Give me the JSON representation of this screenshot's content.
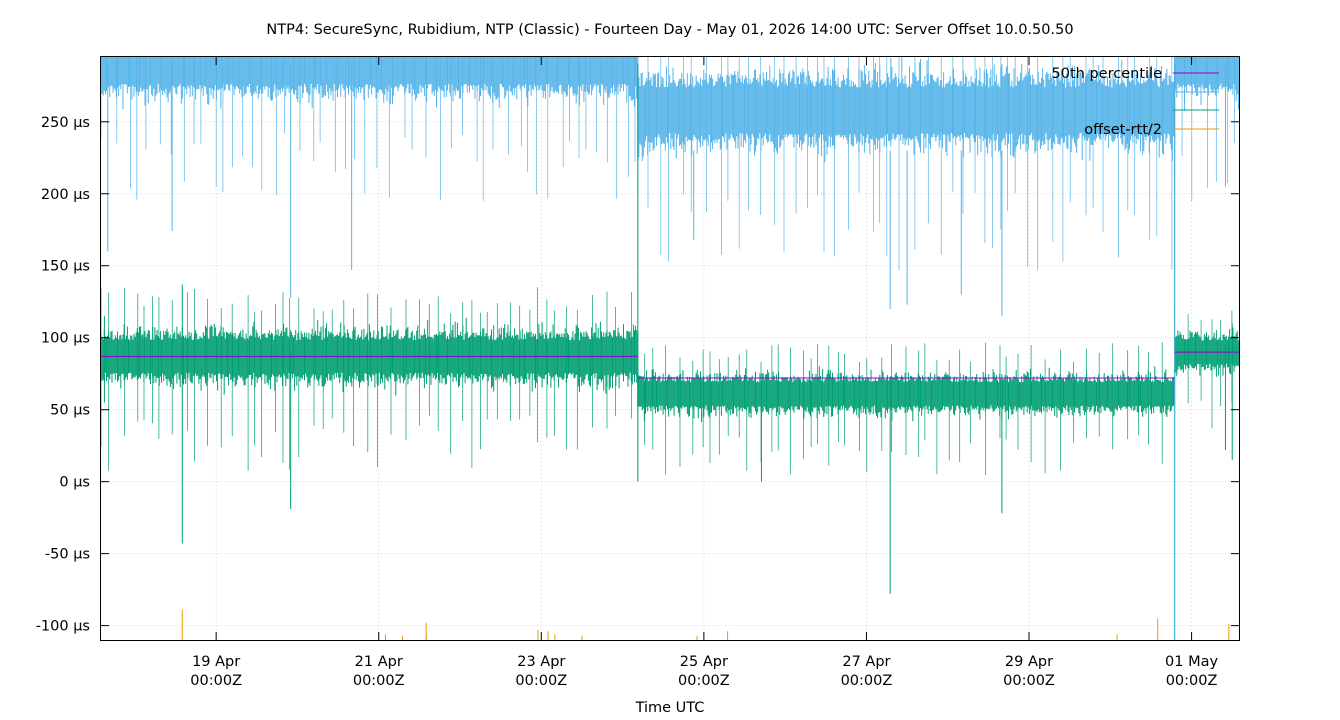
{
  "chart_data": {
    "type": "line",
    "title": "NTP4: SecureSync, Rubidium, NTP (Classic) - Fourteen Day - May 01, 2026 14:00 UTC: Server Offset 10.0.50.50",
    "xlabel": "Time UTC",
    "ylabel": "",
    "ylim": [
      -110,
      295
    ],
    "y_ticks": [
      {
        "value": 250,
        "label": "250 µs"
      },
      {
        "value": 200,
        "label": "200 µs"
      },
      {
        "value": 150,
        "label": "150 µs"
      },
      {
        "value": 100,
        "label": "100 µs"
      },
      {
        "value": 50,
        "label": "50 µs"
      },
      {
        "value": 0,
        "label": "0 µs"
      },
      {
        "value": -50,
        "label": "-50 µs"
      },
      {
        "value": -100,
        "label": "-100 µs"
      }
    ],
    "xlim": [
      "2026-04-17T14:00Z",
      "2026-05-01T14:00Z"
    ],
    "x_ticks": [
      {
        "value": "2026-04-19T00:00Z",
        "line1": "19 Apr",
        "line2": "00:00Z"
      },
      {
        "value": "2026-04-21T00:00Z",
        "line1": "21 Apr",
        "line2": "00:00Z"
      },
      {
        "value": "2026-04-23T00:00Z",
        "line1": "23 Apr",
        "line2": "00:00Z"
      },
      {
        "value": "2026-04-25T00:00Z",
        "line1": "25 Apr",
        "line2": "00:00Z"
      },
      {
        "value": "2026-04-27T00:00Z",
        "line1": "27 Apr",
        "line2": "00:00Z"
      },
      {
        "value": "2026-04-29T00:00Z",
        "line1": "29 Apr",
        "line2": "00:00Z"
      },
      {
        "value": "2026-05-01T00:00Z",
        "line1": "01 May",
        "line2": "00:00Z"
      }
    ],
    "grid": true,
    "legend_position": "top-right",
    "series": [
      {
        "name": "50th percentile",
        "color": "#9400d3",
        "segments": [
          {
            "start": "2026-04-17T14:00Z",
            "end": "2026-04-24T04:30Z",
            "value": 87
          },
          {
            "start": "2026-04-24T04:30Z",
            "end": "2026-04-30T19:00Z",
            "value": 72
          },
          {
            "start": "2026-04-30T19:00Z",
            "end": "2026-05-01T14:00Z",
            "value": 90
          }
        ]
      },
      {
        "name": "",
        "color": "#56b4e9",
        "segments": [
          {
            "start": "2026-04-17T14:00Z",
            "end": "2026-04-24T04:30Z",
            "center": 290,
            "spread": 30
          },
          {
            "start": "2026-04-24T04:30Z",
            "end": "2026-04-30T19:00Z",
            "center": 258,
            "spread": 35
          },
          {
            "start": "2026-04-30T19:00Z",
            "end": "2026-05-01T14:00Z",
            "center": 290,
            "spread": 30
          }
        ]
      },
      {
        "name": "",
        "color": "#009e73",
        "segments": [
          {
            "start": "2026-04-17T14:00Z",
            "end": "2026-04-24T04:30Z",
            "center": 87,
            "spread": 25
          },
          {
            "start": "2026-04-24T04:30Z",
            "end": "2026-04-30T19:00Z",
            "center": 61,
            "spread": 18
          },
          {
            "start": "2026-04-30T19:00Z",
            "end": "2026-05-01T14:00Z",
            "center": 90,
            "spread": 18
          }
        ]
      },
      {
        "name": "offset-rtt/2",
        "color": "#e69f00",
        "values": [
          {
            "x": "2026-04-18T14:00Z",
            "y": -89
          },
          {
            "x": "2026-04-21T02:00Z",
            "y": -106
          },
          {
            "x": "2026-04-21T07:00Z",
            "y": -107
          },
          {
            "x": "2026-04-21T14:00Z",
            "y": -107
          },
          {
            "x": "2026-04-21T14:00Z",
            "y": -98
          },
          {
            "x": "2026-04-22T23:00Z",
            "y": -103
          },
          {
            "x": "2026-04-23T02:00Z",
            "y": -104
          },
          {
            "x": "2026-04-23T04:00Z",
            "y": -106
          },
          {
            "x": "2026-04-23T12:00Z",
            "y": -107
          },
          {
            "x": "2026-04-24T22:00Z",
            "y": -107
          },
          {
            "x": "2026-04-25T07:00Z",
            "y": -104
          },
          {
            "x": "2026-04-30T02:00Z",
            "y": -106
          },
          {
            "x": "2026-04-30T14:00Z",
            "y": -95
          },
          {
            "x": "2026-05-01T11:00Z",
            "y": -99
          }
        ]
      }
    ],
    "spikes": [
      {
        "series": 2,
        "x": "2026-04-18T14:00Z",
        "low": -43,
        "high": 137
      },
      {
        "series": 2,
        "x": "2026-04-19T22:00Z",
        "low": -19,
        "high": 90
      },
      {
        "series": 2,
        "x": "2026-04-17T15:00Z",
        "low": 55,
        "high": 115
      },
      {
        "series": 2,
        "x": "2026-04-27T07:00Z",
        "low": -78,
        "high": 70
      },
      {
        "series": 2,
        "x": "2026-04-28T16:00Z",
        "low": -22,
        "high": 70
      },
      {
        "series": 2,
        "x": "2026-04-25T17:00Z",
        "low": 0,
        "high": 70
      },
      {
        "series": 2,
        "x": "2026-04-30T19:00Z",
        "low": -110,
        "high": 290
      },
      {
        "series": 2,
        "x": "2026-05-01T10:00Z",
        "low": 22,
        "high": 95
      },
      {
        "series": 2,
        "x": "2026-05-01T12:00Z",
        "low": 15,
        "high": 110
      },
      {
        "series": 2,
        "x": "2026-04-24T04:30Z",
        "low": 0,
        "high": 290
      },
      {
        "series": 1,
        "x": "2026-04-19T22:00Z",
        "low": 128,
        "high": 290
      },
      {
        "series": 1,
        "x": "2026-04-20T16:00Z",
        "low": 147,
        "high": 290
      },
      {
        "series": 1,
        "x": "2026-04-17T16:00Z",
        "low": 160,
        "high": 290
      },
      {
        "series": 1,
        "x": "2026-04-18T11:00Z",
        "low": 174,
        "high": 290
      },
      {
        "series": 1,
        "x": "2026-04-24T21:00Z",
        "low": 168,
        "high": 230
      },
      {
        "series": 1,
        "x": "2026-04-27T07:00Z",
        "low": 120,
        "high": 230
      },
      {
        "series": 1,
        "x": "2026-04-27T12:00Z",
        "low": 123,
        "high": 230
      },
      {
        "series": 1,
        "x": "2026-04-28T16:00Z",
        "low": 115,
        "high": 230
      },
      {
        "series": 1,
        "x": "2026-04-28T04:00Z",
        "low": 130,
        "high": 230
      },
      {
        "series": 1,
        "x": "2026-04-30T19:00Z",
        "low": -110,
        "high": 290
      },
      {
        "series": 1,
        "x": "2026-05-01T10:00Z",
        "low": 205,
        "high": 290
      }
    ]
  }
}
